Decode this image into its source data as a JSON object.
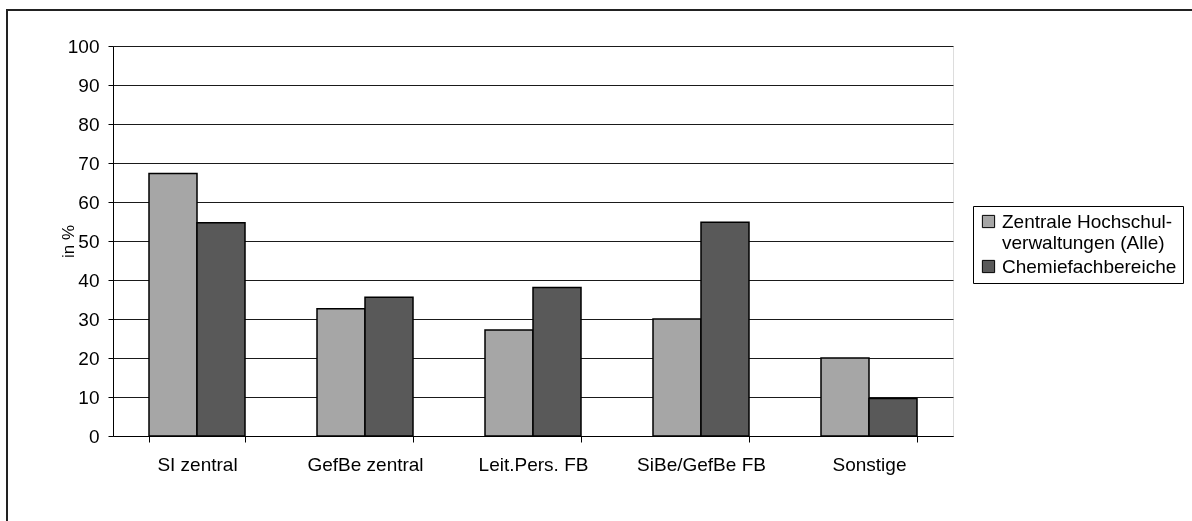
{
  "chart_data": {
    "type": "bar",
    "ylabel": "in %",
    "categories": [
      "SI zentral",
      "GefBe zentral",
      "Leit.Pers. FB",
      "SiBe/GefBe FB",
      "Sonstige"
    ],
    "series": [
      {
        "name": "Zentrale Hochschul-verwaltungen (Alle)",
        "color": "#a6a6a6",
        "values": [
          67.3,
          32.6,
          27.2,
          30.0,
          20.0
        ]
      },
      {
        "name": "Chemiefachbereiche",
        "color": "#595959",
        "values": [
          54.7,
          35.6,
          38.1,
          54.8,
          9.6
        ]
      }
    ],
    "ylim": [
      0,
      100
    ],
    "yticks": [
      0,
      10,
      20,
      30,
      40,
      50,
      60,
      70,
      80,
      90,
      100
    ],
    "grid": "y",
    "legend": "right"
  }
}
